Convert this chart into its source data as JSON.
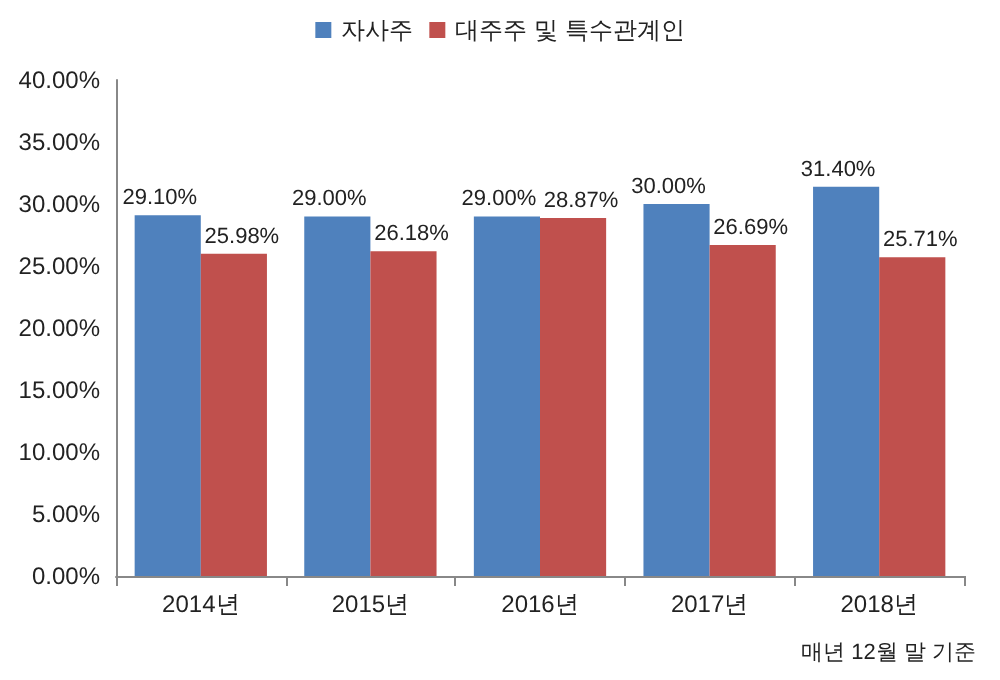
{
  "chart_data": {
    "type": "bar",
    "categories": [
      "2014년",
      "2015년",
      "2016년",
      "2017년",
      "2018년"
    ],
    "series": [
      {
        "name": "자사주",
        "color": "#4f81bd",
        "values": [
          29.1,
          29.0,
          29.0,
          30.0,
          31.4
        ],
        "value_labels": [
          "29.10%",
          "29.00%",
          "29.00%",
          "30.00%",
          "31.40%"
        ]
      },
      {
        "name": "대주주 및 특수관계인",
        "color": "#c0504d",
        "values": [
          25.98,
          26.18,
          28.87,
          26.69,
          25.71
        ],
        "value_labels": [
          "25.98%",
          "26.18%",
          "28.87%",
          "26.69%",
          "25.71%"
        ]
      }
    ],
    "ylim": [
      0,
      40
    ],
    "yticks": [
      {
        "value": 0,
        "label": "0.00%"
      },
      {
        "value": 5,
        "label": "5.00%"
      },
      {
        "value": 10,
        "label": "10.00%"
      },
      {
        "value": 15,
        "label": "15.00%"
      },
      {
        "value": 20,
        "label": "20.00%"
      },
      {
        "value": 25,
        "label": "25.00%"
      },
      {
        "value": 30,
        "label": "30.00%"
      },
      {
        "value": 35,
        "label": "35.00%"
      },
      {
        "value": 40,
        "label": "40.00%"
      }
    ],
    "grid": false,
    "legend": "top",
    "annotations": [
      "매년 12월 말 기준"
    ]
  }
}
